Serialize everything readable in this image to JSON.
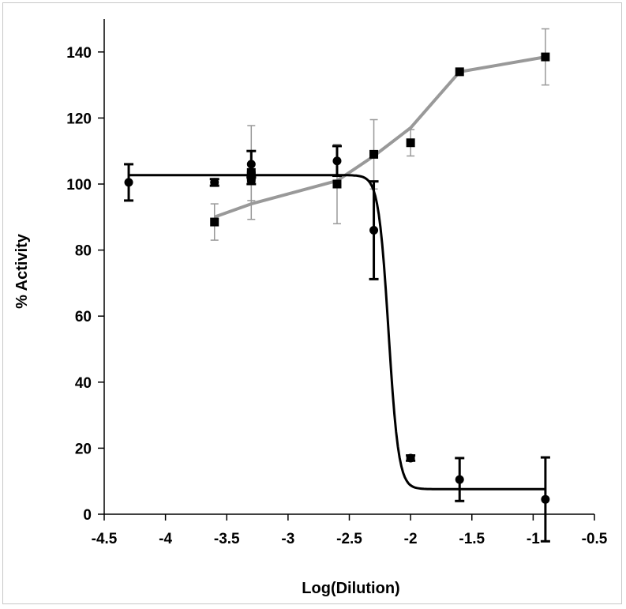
{
  "chart_data": {
    "type": "scatter",
    "title": "",
    "xlabel": "Log(Dilution)",
    "ylabel": "% Activity",
    "xlim": [
      -4.5,
      -0.5
    ],
    "ylim": [
      0,
      150
    ],
    "xticks": [
      -4.5,
      -4,
      -3.5,
      -3,
      -2.5,
      -2,
      -1.5,
      -1,
      -0.5
    ],
    "xtick_labels": [
      "-4.5",
      "-4",
      "-3.5",
      "-3",
      "-2.5",
      "-2",
      "-1.5",
      "-1",
      "-0.5"
    ],
    "yticks": [
      0,
      20,
      40,
      60,
      80,
      100,
      120,
      140
    ],
    "ytick_labels": [
      "0",
      "20",
      "40",
      "60",
      "80",
      "100",
      "120",
      "140"
    ],
    "grid": false,
    "legend": "none",
    "series": [
      {
        "marker": "circle",
        "color": "#000000",
        "points": [
          {
            "x": -4.3,
            "y": 100.5,
            "err": 5.5
          },
          {
            "x": -3.6,
            "y": 100.5,
            "err": 1.0
          },
          {
            "x": -3.3,
            "y": 101.0,
            "err": 1.0
          },
          {
            "x": -3.3,
            "y": 106.0,
            "err": 4.0
          },
          {
            "x": -2.6,
            "y": 107.0,
            "err": 4.5
          },
          {
            "x": -2.3,
            "y": 86.0,
            "err": 14.8
          },
          {
            "x": -2.0,
            "y": 17.0,
            "err": 0.8
          },
          {
            "x": -1.6,
            "y": 10.5,
            "err": 6.5
          },
          {
            "x": -0.9,
            "y": 4.5,
            "err": 12.7
          }
        ],
        "fit": {
          "kind": "sigmoid",
          "top": 102.7,
          "bottom": 7.6,
          "ec50_log": -2.18,
          "hill": 10.6,
          "x_range": [
            -4.3,
            -0.9
          ],
          "color": "#000000"
        }
      },
      {
        "marker": "square",
        "color": "#000000",
        "line_color": "#999999",
        "points": [
          {
            "x": -3.6,
            "y": 88.5,
            "err": 5.5
          },
          {
            "x": -3.3,
            "y": 103.5,
            "err": 14.2
          },
          {
            "x": -3.3,
            "y": 102.5,
            "err": 7.5
          },
          {
            "x": -2.6,
            "y": 100.0,
            "err": 12.0
          },
          {
            "x": -2.3,
            "y": 109.0,
            "err": 10.5
          },
          {
            "x": -2.0,
            "y": 112.5,
            "err": 4.0
          },
          {
            "x": -1.6,
            "y": 134.0,
            "err": 0
          },
          {
            "x": -0.9,
            "y": 138.5,
            "err": 8.5
          }
        ],
        "line": [
          {
            "x": -3.6,
            "y": 90.0
          },
          {
            "x": -3.3,
            "y": 94.0
          },
          {
            "x": -2.6,
            "y": 101.0
          },
          {
            "x": -2.3,
            "y": 108.5
          },
          {
            "x": -2.0,
            "y": 117.0
          },
          {
            "x": -1.6,
            "y": 134.0
          },
          {
            "x": -0.9,
            "y": 138.5
          }
        ]
      }
    ]
  }
}
